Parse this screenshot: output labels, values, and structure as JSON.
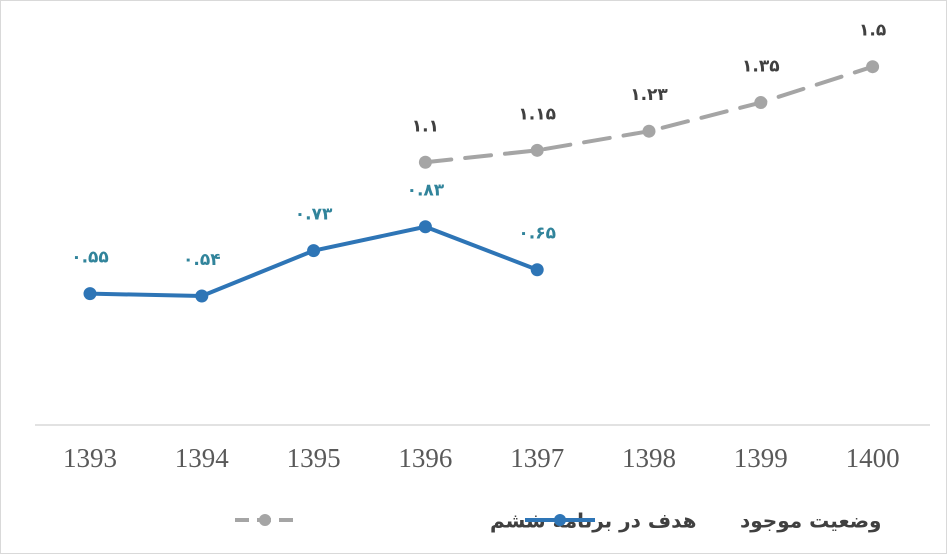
{
  "chart_data": {
    "type": "line",
    "categories": [
      "1393",
      "1394",
      "1395",
      "1396",
      "1397",
      "1398",
      "1399",
      "1400"
    ],
    "series": [
      {
        "name": "هدف در برنامه ششم",
        "color": "#a5a5a5",
        "dashed": true,
        "label_color": "#404040",
        "values": [
          null,
          null,
          null,
          1.1,
          1.15,
          1.23,
          1.35,
          1.5
        ],
        "value_labels": [
          null,
          null,
          null,
          "۱.۱",
          "۱.۱۵",
          "۱.۲۳",
          "۱.۳۵",
          "۱.۵"
        ]
      },
      {
        "name": "وضعیت موجود",
        "color": "#2e75b6",
        "dashed": false,
        "label_color": "#31849b",
        "values": [
          0.55,
          0.54,
          0.73,
          0.83,
          0.65,
          null,
          null,
          null
        ],
        "value_labels": [
          "۰.۵۵",
          "۰.۵۴",
          "۰.۷۳",
          "۰.۸۳",
          "۰.۶۵",
          null,
          null,
          null
        ]
      }
    ],
    "ylim": [
      0,
      1.75
    ]
  }
}
